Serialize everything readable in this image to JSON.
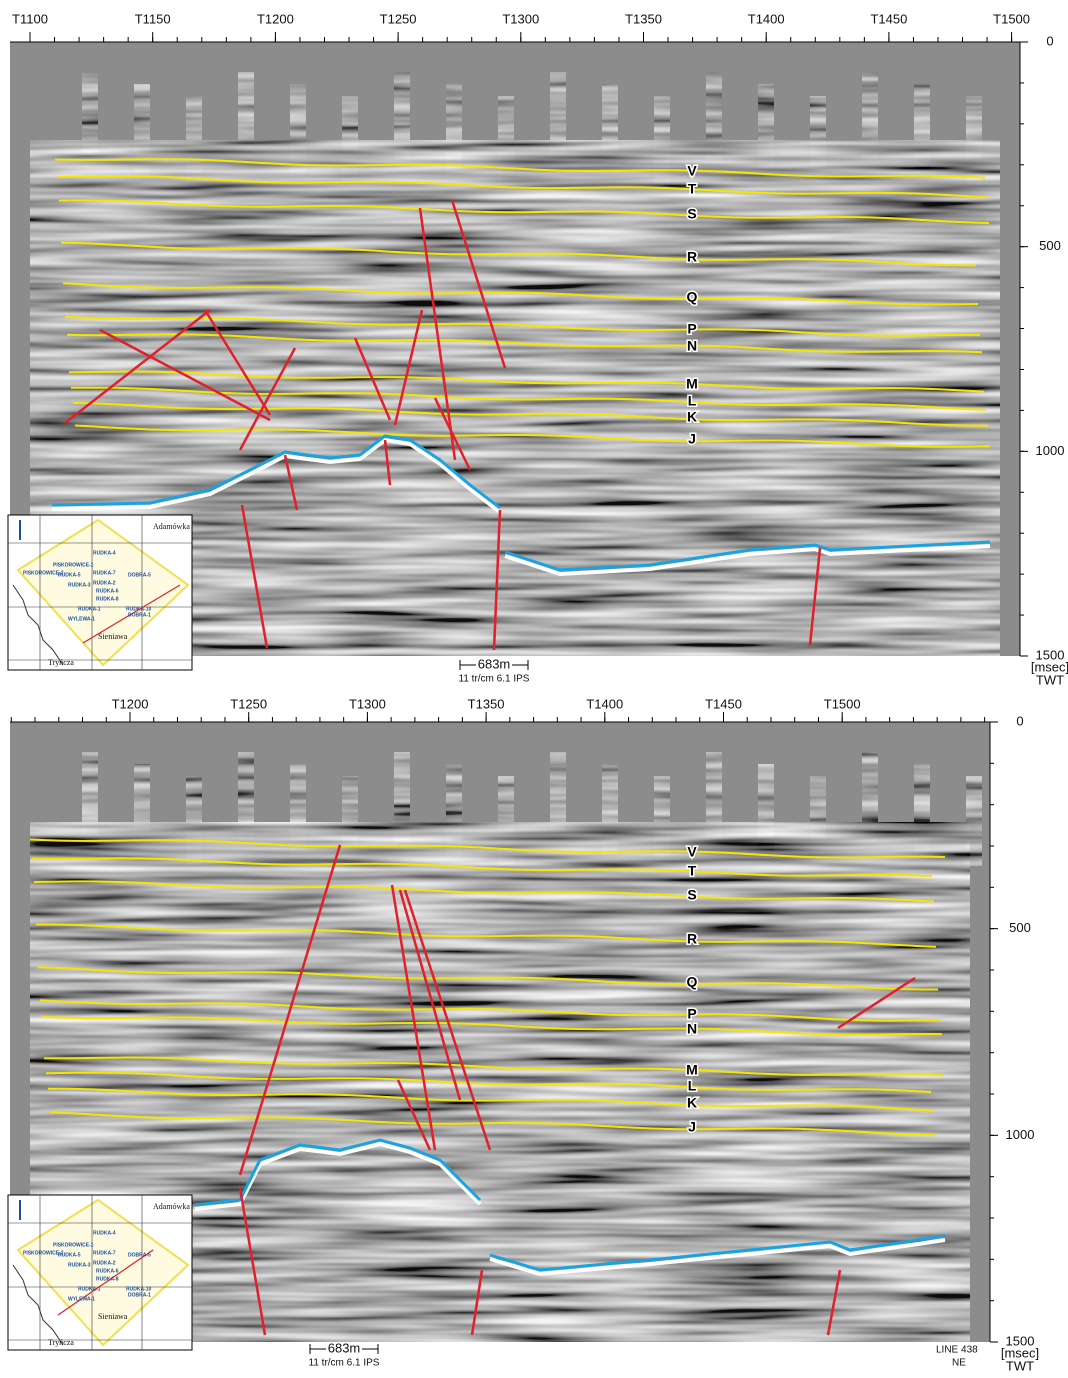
{
  "panels": [
    {
      "top_ticks": [
        "T1100",
        "T1150",
        "T1200",
        "T1250",
        "T1300",
        "T1350",
        "T1400",
        "T1450",
        "T1500"
      ],
      "right_ticks": [
        0,
        500,
        1000,
        1500
      ],
      "axis_unit": "[msec]",
      "axis_name": "TWT",
      "horizons": [
        "V",
        "T",
        "S",
        "R",
        "Q",
        "P",
        "N",
        "M",
        "L",
        "K",
        "J"
      ],
      "scale": "683m",
      "scale_note": "11 tr/cm 6.1 IPS",
      "map": {
        "labels": [
          "Adamówka",
          "PISKOROWICE-1",
          "PISKOROWICE-2",
          "RUDKA-4",
          "RUDKA-7",
          "RUDKA-5",
          "RUDKA-3",
          "RUDKA-2",
          "RUDKA-6",
          "RUDKA-8",
          "RUDKA-1",
          "RUDKA-10",
          "DOBRA-5",
          "DOBRA-1",
          "WYLEWA-1",
          "Sieniawa",
          "Tryńcza"
        ]
      }
    },
    {
      "top_ticks": [
        "T1200",
        "T1250",
        "T1300",
        "T1350",
        "T1400",
        "T1450",
        "T1500"
      ],
      "right_ticks": [
        0,
        500,
        1000,
        1500
      ],
      "axis_unit": "[msec]",
      "axis_name": "TWT",
      "horizons": [
        "V",
        "T",
        "S",
        "R",
        "Q",
        "P",
        "N",
        "M",
        "L",
        "K",
        "J"
      ],
      "scale": "683m",
      "scale_note": "11 tr/cm 6.1 IPS",
      "map": {
        "labels": [
          "Adamówka",
          "PISKOROWICE-1",
          "PISKOROWICE-2",
          "RUDKA-4",
          "RUDKA-7",
          "RUDKA-5",
          "RUDKA-3",
          "RUDKA-2",
          "RUDKA-6",
          "RUDKA-8",
          "RUDKA-1",
          "RUDKA-10",
          "DOBRA-5",
          "DOBRA-1",
          "WYLEWA-1",
          "Sieniawa",
          "Tryńcza"
        ]
      }
    }
  ],
  "line_label": "LINE 438",
  "direction": "NE"
}
